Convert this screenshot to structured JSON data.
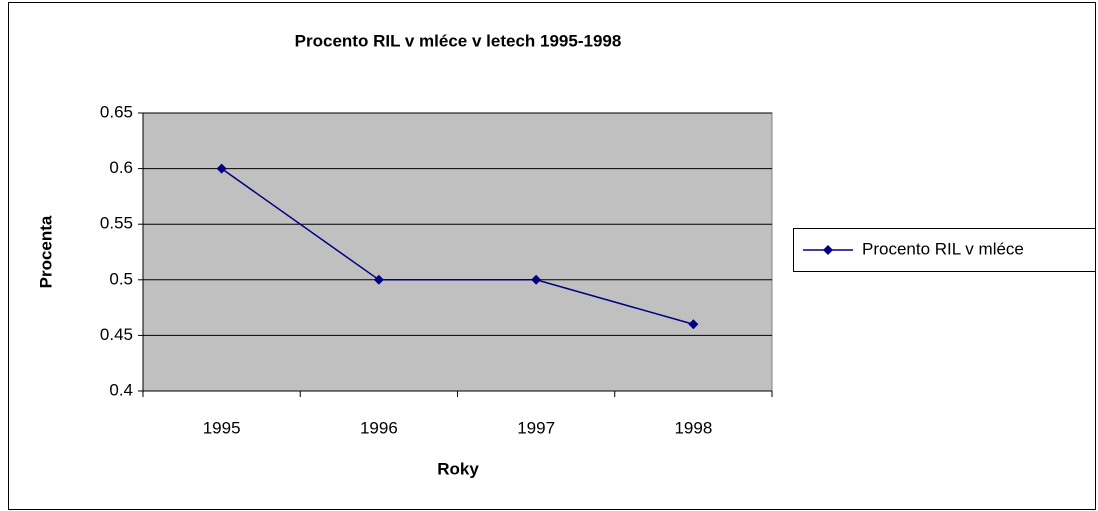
{
  "chart_data": {
    "type": "line",
    "title": "Procento RIL v mléce v letech 1995-1998",
    "x_label": "Roky",
    "y_label": "Procenta",
    "categories": [
      "1995",
      "1996",
      "1997",
      "1998"
    ],
    "series": [
      {
        "name": "Procento RIL v mléce",
        "color": "#000080",
        "values": [
          0.6,
          0.5,
          0.5,
          0.46
        ]
      }
    ],
    "ylim": [
      0.4,
      0.65
    ],
    "yticks": [
      0.4,
      0.45,
      0.5,
      0.55,
      0.6,
      0.65
    ],
    "grid": true,
    "legend": "right"
  }
}
